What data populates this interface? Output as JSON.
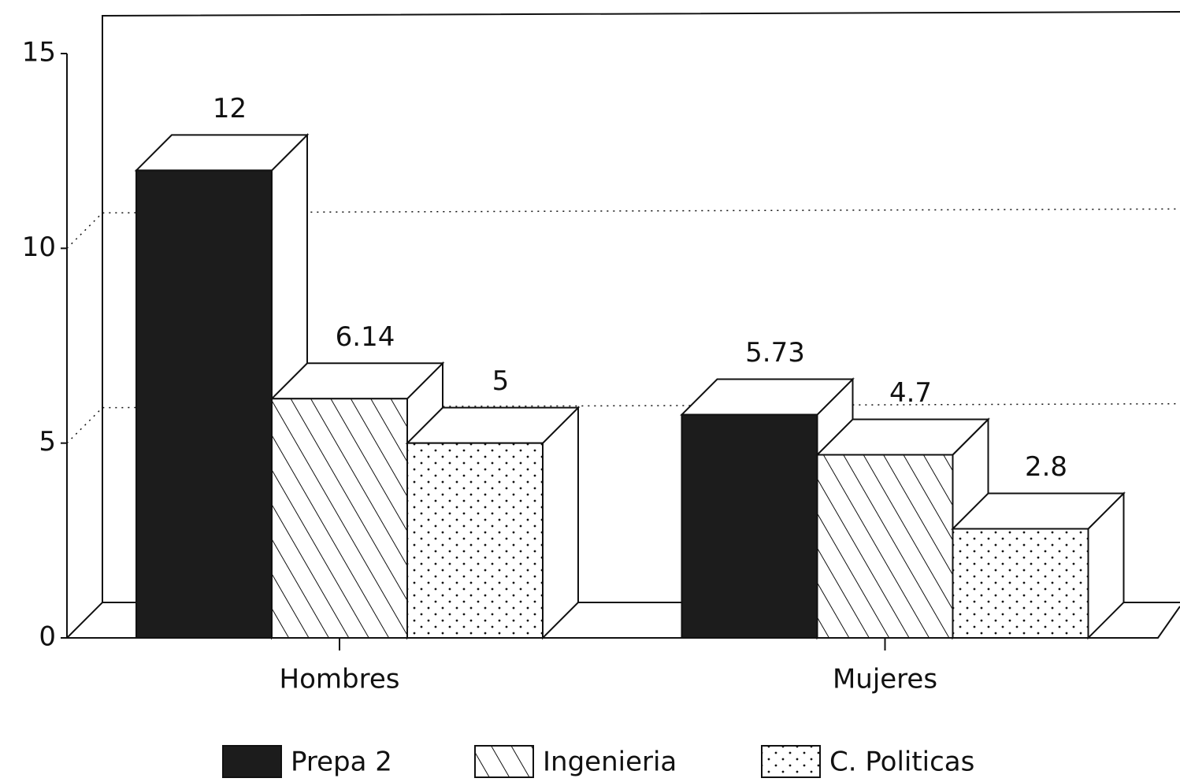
{
  "chart_data": {
    "type": "bar3d",
    "categories": [
      "Hombres",
      "Mujeres"
    ],
    "series": [
      {
        "name": "Prepa 2",
        "color": "#1c1c1c",
        "pattern": "solid",
        "values": [
          12,
          5.73
        ]
      },
      {
        "name": "Ingenieria",
        "color": "#ffffff",
        "pattern": "hatch",
        "values": [
          6.14,
          4.7
        ]
      },
      {
        "name": "C. Politicas",
        "color": "#ffffff",
        "pattern": "dots",
        "values": [
          5,
          2.8
        ]
      }
    ],
    "ylim": [
      0,
      15
    ],
    "yticks": [
      0,
      5,
      10,
      15
    ],
    "grid": true,
    "legend": "bottom"
  }
}
